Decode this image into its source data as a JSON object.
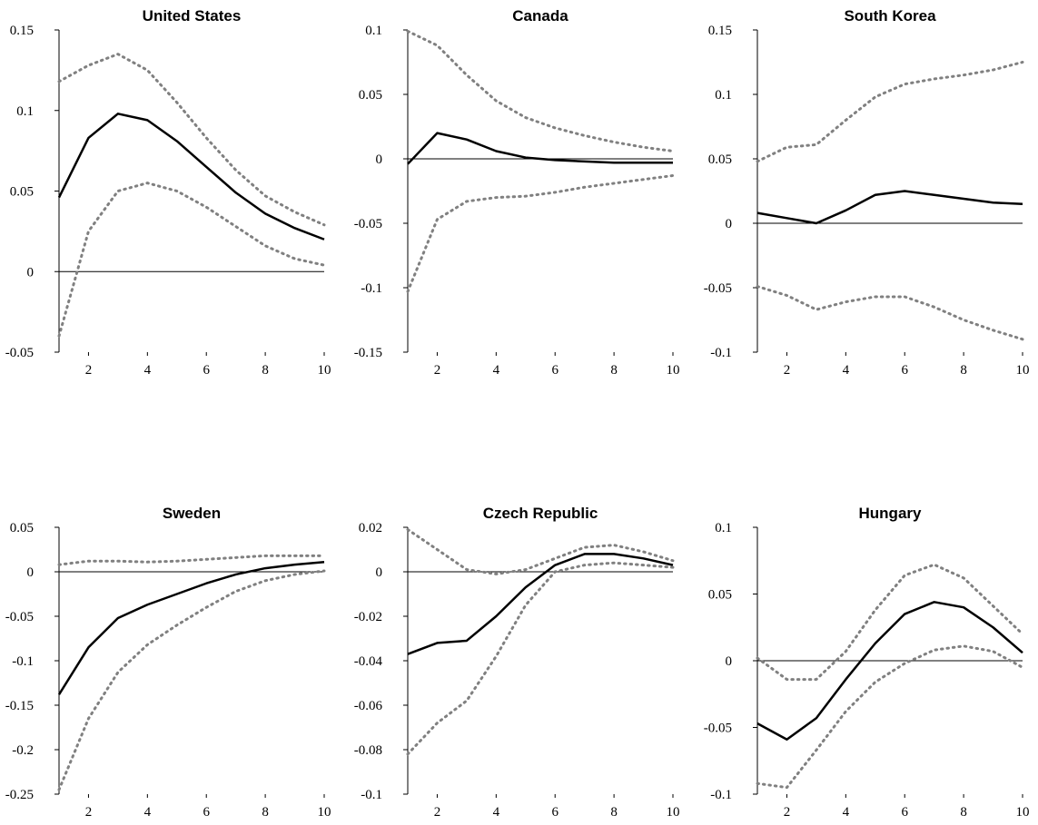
{
  "chart_data": [
    {
      "type": "line",
      "title": "United States",
      "x": [
        1,
        2,
        3,
        4,
        5,
        6,
        7,
        8,
        9,
        10
      ],
      "xlim": [
        1,
        10
      ],
      "xticks": [
        2,
        4,
        6,
        8,
        10
      ],
      "ylim": [
        -0.05,
        0.15
      ],
      "yticks": [
        -0.05,
        0,
        0.05,
        0.1,
        0.15
      ],
      "hline": 0,
      "series": [
        {
          "color": "#000000",
          "style": "solid",
          "values": [
            0.046,
            0.083,
            0.098,
            0.094,
            0.081,
            0.065,
            0.049,
            0.036,
            0.027,
            0.02
          ]
        },
        {
          "color": "#808080",
          "style": "dotted",
          "values": [
            0.118,
            0.128,
            0.135,
            0.125,
            0.105,
            0.083,
            0.063,
            0.047,
            0.037,
            0.029
          ]
        },
        {
          "color": "#808080",
          "style": "dotted",
          "values": [
            -0.04,
            0.025,
            0.05,
            0.055,
            0.05,
            0.04,
            0.028,
            0.016,
            0.008,
            0.004
          ]
        }
      ]
    },
    {
      "type": "line",
      "title": "Canada",
      "x": [
        1,
        2,
        3,
        4,
        5,
        6,
        7,
        8,
        9,
        10
      ],
      "xlim": [
        1,
        10
      ],
      "xticks": [
        2,
        4,
        6,
        8,
        10
      ],
      "ylim": [
        -0.15,
        0.1
      ],
      "yticks": [
        -0.15,
        -0.1,
        -0.05,
        0,
        0.05,
        0.1
      ],
      "hline": 0,
      "series": [
        {
          "color": "#000000",
          "style": "solid",
          "values": [
            -0.004,
            0.02,
            0.015,
            0.006,
            0.001,
            -0.001,
            -0.002,
            -0.003,
            -0.003,
            -0.003
          ]
        },
        {
          "color": "#808080",
          "style": "dotted",
          "values": [
            0.099,
            0.088,
            0.065,
            0.045,
            0.032,
            0.024,
            0.018,
            0.013,
            0.009,
            0.006
          ]
        },
        {
          "color": "#808080",
          "style": "dotted",
          "values": [
            -0.103,
            -0.047,
            -0.033,
            -0.03,
            -0.029,
            -0.026,
            -0.022,
            -0.019,
            -0.016,
            -0.013
          ]
        }
      ]
    },
    {
      "type": "line",
      "title": "South Korea",
      "x": [
        1,
        2,
        3,
        4,
        5,
        6,
        7,
        8,
        9,
        10
      ],
      "xlim": [
        1,
        10
      ],
      "xticks": [
        2,
        4,
        6,
        8,
        10
      ],
      "ylim": [
        -0.1,
        0.15
      ],
      "yticks": [
        -0.1,
        -0.05,
        0,
        0.05,
        0.1,
        0.15
      ],
      "hline": 0,
      "series": [
        {
          "color": "#000000",
          "style": "solid",
          "values": [
            0.008,
            0.004,
            0.0,
            0.01,
            0.022,
            0.025,
            0.022,
            0.019,
            0.016,
            0.015
          ]
        },
        {
          "color": "#808080",
          "style": "dotted",
          "values": [
            0.048,
            0.059,
            0.061,
            0.08,
            0.098,
            0.108,
            0.112,
            0.115,
            0.119,
            0.125
          ]
        },
        {
          "color": "#808080",
          "style": "dotted",
          "values": [
            -0.049,
            -0.056,
            -0.067,
            -0.061,
            -0.057,
            -0.057,
            -0.065,
            -0.075,
            -0.083,
            -0.09
          ]
        }
      ]
    },
    {
      "type": "line",
      "title": "Sweden",
      "x": [
        1,
        2,
        3,
        4,
        5,
        6,
        7,
        8,
        9,
        10
      ],
      "xlim": [
        1,
        10
      ],
      "xticks": [
        2,
        4,
        6,
        8,
        10
      ],
      "ylim": [
        -0.25,
        0.05
      ],
      "yticks": [
        -0.25,
        -0.2,
        -0.15,
        -0.1,
        -0.05,
        0,
        0.05
      ],
      "hline": 0,
      "series": [
        {
          "color": "#000000",
          "style": "solid",
          "values": [
            -0.138,
            -0.085,
            -0.052,
            -0.037,
            -0.025,
            -0.013,
            -0.003,
            0.004,
            0.008,
            0.011
          ]
        },
        {
          "color": "#808080",
          "style": "dotted",
          "values": [
            0.008,
            0.012,
            0.012,
            0.011,
            0.012,
            0.014,
            0.016,
            0.018,
            0.018,
            0.018
          ]
        },
        {
          "color": "#808080",
          "style": "dotted",
          "values": [
            -0.245,
            -0.165,
            -0.113,
            -0.082,
            -0.06,
            -0.04,
            -0.022,
            -0.01,
            -0.003,
            0.001
          ]
        }
      ]
    },
    {
      "type": "line",
      "title": "Czech Republic",
      "x": [
        1,
        2,
        3,
        4,
        5,
        6,
        7,
        8,
        9,
        10
      ],
      "xlim": [
        1,
        10
      ],
      "xticks": [
        2,
        4,
        6,
        8,
        10
      ],
      "ylim": [
        -0.1,
        0.02
      ],
      "yticks": [
        -0.1,
        -0.08,
        -0.06,
        -0.04,
        -0.02,
        0,
        0.02
      ],
      "hline": 0,
      "series": [
        {
          "color": "#000000",
          "style": "solid",
          "values": [
            -0.037,
            -0.032,
            -0.031,
            -0.02,
            -0.007,
            0.003,
            0.008,
            0.008,
            0.006,
            0.003
          ]
        },
        {
          "color": "#808080",
          "style": "dotted",
          "values": [
            0.019,
            0.01,
            0.001,
            -0.001,
            0.001,
            0.006,
            0.011,
            0.012,
            0.009,
            0.005
          ]
        },
        {
          "color": "#808080",
          "style": "dotted",
          "values": [
            -0.082,
            -0.068,
            -0.058,
            -0.038,
            -0.015,
            0.0,
            0.003,
            0.004,
            0.003,
            0.002
          ]
        }
      ]
    },
    {
      "type": "line",
      "title": "Hungary",
      "x": [
        1,
        2,
        3,
        4,
        5,
        6,
        7,
        8,
        9,
        10
      ],
      "xlim": [
        1,
        10
      ],
      "xticks": [
        2,
        4,
        6,
        8,
        10
      ],
      "ylim": [
        -0.1,
        0.1
      ],
      "yticks": [
        -0.1,
        -0.05,
        0,
        0.05,
        0.1
      ],
      "hline": 0,
      "series": [
        {
          "color": "#000000",
          "style": "solid",
          "values": [
            -0.047,
            -0.059,
            -0.043,
            -0.014,
            0.013,
            0.035,
            0.044,
            0.04,
            0.025,
            0.006
          ]
        },
        {
          "color": "#808080",
          "style": "dotted",
          "values": [
            0.002,
            -0.014,
            -0.014,
            0.007,
            0.038,
            0.064,
            0.072,
            0.062,
            0.041,
            0.02
          ]
        },
        {
          "color": "#808080",
          "style": "dotted",
          "values": [
            -0.092,
            -0.095,
            -0.067,
            -0.038,
            -0.016,
            -0.002,
            0.008,
            0.011,
            0.007,
            -0.005
          ]
        }
      ]
    }
  ]
}
